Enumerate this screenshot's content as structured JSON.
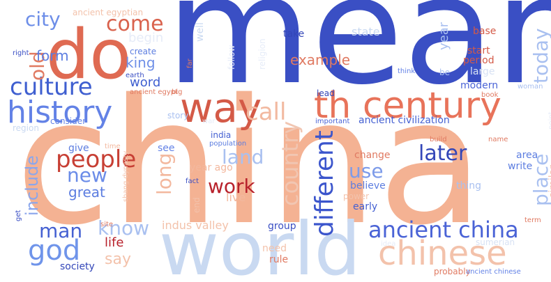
{
  "cloud": {
    "words": [
      {
        "text": "mean",
        "color": "#3a4fc4"
      },
      {
        "text": "china",
        "color": "#f4b293"
      },
      {
        "text": "world",
        "color": "#c9d9f1"
      },
      {
        "text": "do",
        "color": "#df6a52"
      },
      {
        "text": "way",
        "color": "#d45a47"
      },
      {
        "text": "th century",
        "color": "#e8735a"
      },
      {
        "text": "history",
        "color": "#6382e6"
      },
      {
        "text": "culture",
        "color": "#3f5fd0"
      },
      {
        "text": "chinese",
        "color": "#f3c2ab"
      },
      {
        "text": "ancient china",
        "color": "#4a63d6"
      },
      {
        "text": "people",
        "color": "#c73f34"
      },
      {
        "text": "work",
        "color": "#b8222c"
      },
      {
        "text": "city",
        "color": "#6d8ee8"
      },
      {
        "text": "come",
        "color": "#d9624d"
      },
      {
        "text": "god",
        "color": "#6f94ea"
      },
      {
        "text": "later",
        "color": "#3346b8"
      },
      {
        "text": "new",
        "color": "#6b8ce8"
      },
      {
        "text": "call",
        "color": "#f2b9a0"
      },
      {
        "text": "different",
        "color": "#3b55cc"
      },
      {
        "text": "country",
        "color": "#f1c6b2"
      },
      {
        "text": "land",
        "color": "#a9c0f0"
      },
      {
        "text": "man",
        "color": "#4561d2"
      },
      {
        "text": "know",
        "color": "#a9c0f0"
      },
      {
        "text": "long",
        "color": "#f3b89e"
      },
      {
        "text": "place",
        "color": "#a9c0f0"
      },
      {
        "text": "today",
        "color": "#a9c0f0"
      },
      {
        "text": "old",
        "color": "#e07a62"
      },
      {
        "text": "use",
        "color": "#7d9be9"
      },
      {
        "text": "form",
        "color": "#5c7de0"
      },
      {
        "text": "king",
        "color": "#6e8fe7"
      },
      {
        "text": "word",
        "color": "#3f5fd0"
      },
      {
        "text": "begin",
        "color": "#e6ecf8"
      },
      {
        "text": "include",
        "color": "#8aa6ec"
      },
      {
        "text": "great",
        "color": "#5c7de0"
      },
      {
        "text": "say",
        "color": "#f3c2ab"
      },
      {
        "text": "life",
        "color": "#b8222c"
      },
      {
        "text": "example",
        "color": "#e07a62"
      },
      {
        "text": "state",
        "color": "#c9d9f1"
      },
      {
        "text": "year",
        "color": "#a9c0f0"
      },
      {
        "text": "base",
        "color": "#d45a47"
      },
      {
        "text": "start",
        "color": "#d45a47"
      },
      {
        "text": "period",
        "color": "#d45a47"
      },
      {
        "text": "large",
        "color": "#d8e2f4"
      },
      {
        "text": "modern",
        "color": "#4a63d6"
      },
      {
        "text": "take",
        "color": "#3346b8"
      },
      {
        "text": "indus valley",
        "color": "#f3c2ab"
      },
      {
        "text": "ancient civilization",
        "color": "#4561d2"
      },
      {
        "text": "year ago",
        "color": "#f3b89e"
      },
      {
        "text": "live",
        "color": "#f3b89e"
      },
      {
        "text": "change",
        "color": "#e07a62"
      },
      {
        "text": "believe",
        "color": "#5c7de0"
      },
      {
        "text": "early",
        "color": "#4561d2"
      },
      {
        "text": "power",
        "color": "#f3c2ab"
      },
      {
        "text": "group",
        "color": "#3a4fc4"
      },
      {
        "text": "need",
        "color": "#f3c2ab"
      },
      {
        "text": "rule",
        "color": "#e07a62"
      },
      {
        "text": "society",
        "color": "#3346b8"
      },
      {
        "text": "sumerian",
        "color": "#d8e2f4"
      },
      {
        "text": "thing",
        "color": "#a9c0f0"
      },
      {
        "text": "write",
        "color": "#5c7de0"
      },
      {
        "text": "area",
        "color": "#5c7de0"
      },
      {
        "text": "see",
        "color": "#6382e6"
      },
      {
        "text": "give",
        "color": "#5c7de0"
      },
      {
        "text": "story",
        "color": "#a9c0f0"
      },
      {
        "text": "consider",
        "color": "#6382e6"
      },
      {
        "text": "region",
        "color": "#c9d9f1"
      },
      {
        "text": "create",
        "color": "#5c7de0"
      },
      {
        "text": "ancient egyptian",
        "color": "#f3c2ab"
      },
      {
        "text": "ancient egypt",
        "color": "#e07a62"
      },
      {
        "text": "big",
        "color": "#e07a62"
      },
      {
        "text": "earth",
        "color": "#3a4fc4"
      },
      {
        "text": "right",
        "color": "#3a4fc4"
      },
      {
        "text": "well",
        "color": "#c9d9f1"
      },
      {
        "text": "far",
        "color": "#e07a62"
      },
      {
        "text": "follow",
        "color": "#e6ecf8"
      },
      {
        "text": "religion",
        "color": "#e6ecf8"
      },
      {
        "text": "think",
        "color": "#6382e6"
      },
      {
        "text": "be",
        "color": "#a9c0f0"
      },
      {
        "text": "book",
        "color": "#e07a62"
      },
      {
        "text": "woman",
        "color": "#a9c0f0"
      },
      {
        "text": "lead",
        "color": "#3346b8"
      },
      {
        "text": "important",
        "color": "#4a63d6"
      },
      {
        "text": "war",
        "color": "#e6ecf8"
      },
      {
        "text": "india",
        "color": "#4561d2"
      },
      {
        "text": "population",
        "color": "#5c7de0"
      },
      {
        "text": "fact",
        "color": "#3a4fc4"
      },
      {
        "text": "time",
        "color": "#f3b89e"
      },
      {
        "text": "shang dynasty",
        "color": "#f3c2ab"
      },
      {
        "text": "end",
        "color": "#f3c2ab"
      },
      {
        "text": "build",
        "color": "#e07a62"
      },
      {
        "text": "name",
        "color": "#e07a62"
      },
      {
        "text": "point",
        "color": "#e6ecf8"
      },
      {
        "text": "similar",
        "color": "#f3c2ab"
      },
      {
        "text": "get",
        "color": "#3a4fc4"
      },
      {
        "text": "site",
        "color": "#e07a62"
      },
      {
        "text": "term",
        "color": "#e07a62"
      },
      {
        "text": "idea",
        "color": "#e6ecf8"
      },
      {
        "text": "probably",
        "color": "#e07a62"
      },
      {
        "text": "ancient chinese",
        "color": "#6382e6"
      }
    ]
  }
}
